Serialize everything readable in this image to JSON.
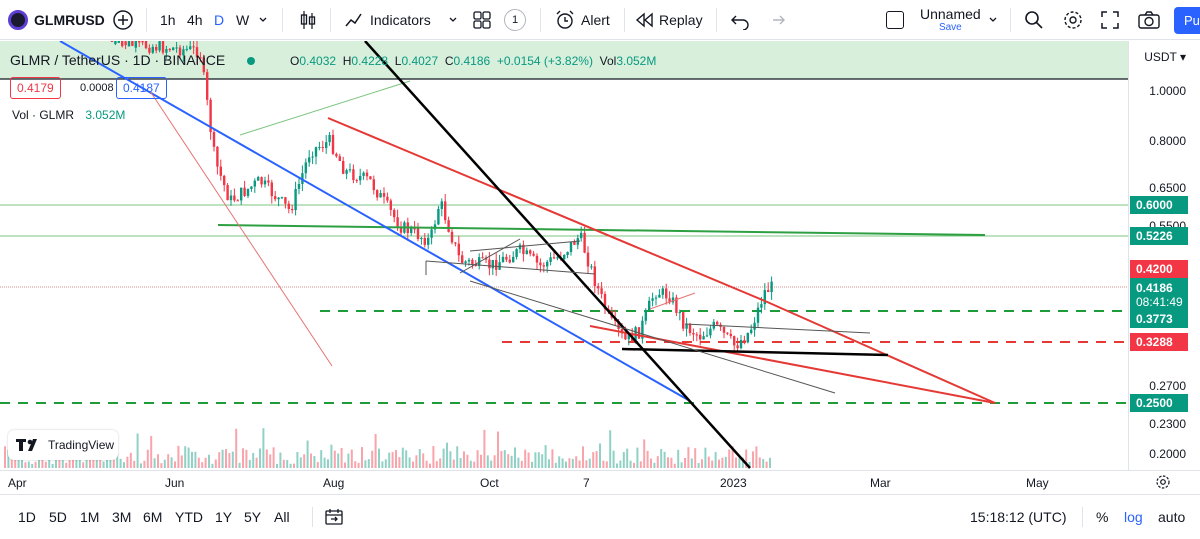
{
  "toolbar": {
    "symbol": "GLMRUSD",
    "intervals": [
      "1h",
      "4h",
      "D",
      "W"
    ],
    "indicators_label": "Indicators",
    "layout_count": "1",
    "alert_label": "Alert",
    "replay_label": "Replay",
    "layout_name": "Unnamed",
    "save_label": "Save",
    "publish_label": "Pu"
  },
  "legend": {
    "title": "GLMR / TetherUS · 1D · BINANCE",
    "o_label": "O",
    "o": "0.4032",
    "h_label": "H",
    "h": "0.4228",
    "l_label": "L",
    "l": "0.4027",
    "c_label": "C",
    "c": "0.4186",
    "change": "+0.0154 (+3.82%)",
    "vol_label": "Vol",
    "vol": "3.052M",
    "sell_price": "0.4179",
    "spread": "0.0008",
    "buy_price": "0.4187",
    "volume_label": "Vol · GLMR",
    "volume_value": "3.052M"
  },
  "price_axis": {
    "currency": "USDT",
    "labels": [
      "1.0000",
      "0.8000",
      "0.6500",
      "0.5500",
      "0.2700",
      "0.2300",
      "0.2000"
    ],
    "tags": [
      {
        "value": "0.6000",
        "color": "#089981"
      },
      {
        "value": "0.5226",
        "color": "#089981"
      },
      {
        "value": "0.4200",
        "color": "#f23645"
      },
      {
        "value": "0.3773",
        "color": "#089981"
      },
      {
        "value": "0.3288",
        "color": "#f23645"
      },
      {
        "value": "0.2500",
        "color": "#089981"
      }
    ],
    "current_price": "0.4186",
    "countdown": "08:41:49"
  },
  "time_axis": {
    "labels": [
      "Apr",
      "Jun",
      "Aug",
      "Oct",
      "7",
      "2023",
      "Mar",
      "May"
    ]
  },
  "bottom": {
    "ranges": [
      "1D",
      "5D",
      "1M",
      "3M",
      "6M",
      "YTD",
      "1Y",
      "5Y",
      "All"
    ],
    "clock": "15:18:12 (UTC)",
    "percent": "%",
    "log": "log",
    "auto": "auto"
  },
  "branding": {
    "tradingview": "TradingView"
  },
  "colors": {
    "up": "#089981",
    "down": "#f23645",
    "accent": "#2962ff"
  }
}
